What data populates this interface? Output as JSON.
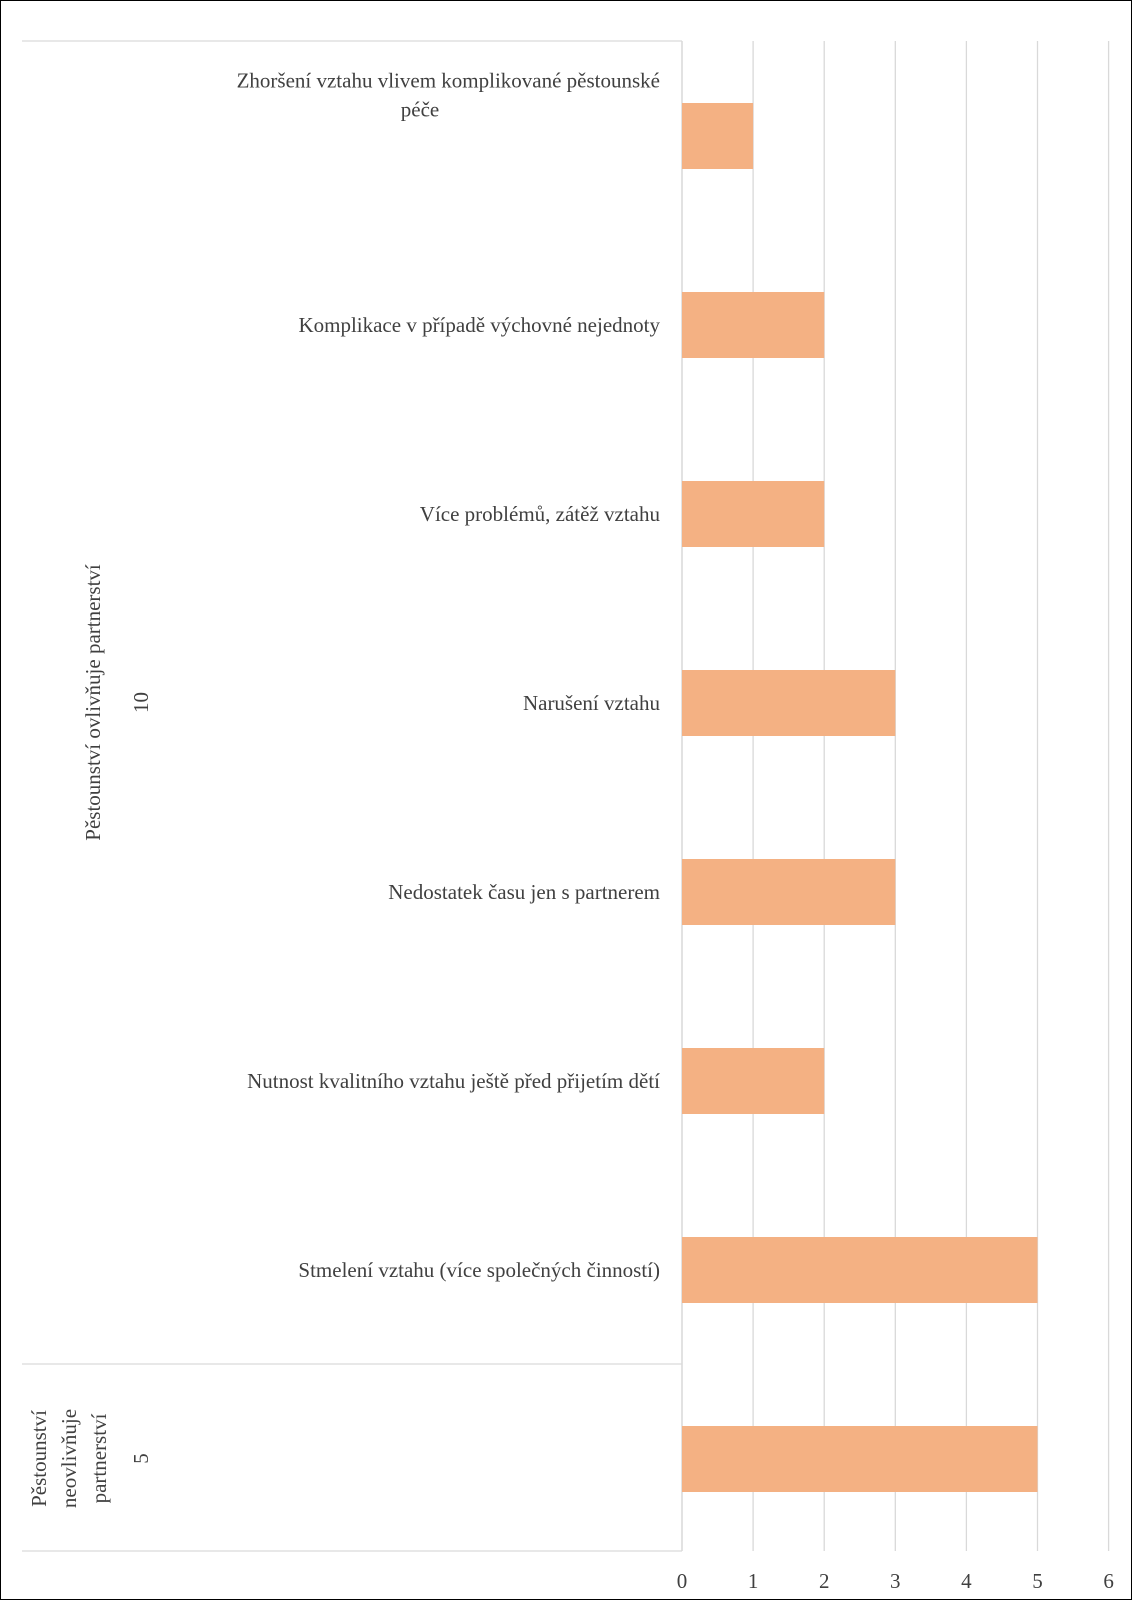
{
  "chart_data": {
    "type": "bar",
    "orientation": "horizontal",
    "bar_color": "#F4B183",
    "groups": [
      {
        "name": "Pěstounství ovlivňuje partnerství",
        "total": "10",
        "categories": [
          "Zhoršení vztahu vlivem komplikované pěstounské péče",
          "Komplikace v případě výchovné nejednoty",
          "Více problémů, zátěž vztahu",
          "Narušení vztahu",
          "Nedostatek času jen s partnerem",
          "Nutnost kvalitního vztahu ještě před přijetím dětí",
          "Stmelení vztahu (více společných činností)"
        ],
        "values": [
          1,
          2,
          2,
          3,
          3,
          2,
          5
        ]
      },
      {
        "name": "Pěstounství neovlivňuje partnerství",
        "total": "5",
        "categories": [
          ""
        ],
        "values": [
          5
        ]
      }
    ],
    "xlim": [
      0,
      6
    ],
    "xticks": [
      "0",
      "1",
      "2",
      "3",
      "4",
      "5",
      "6"
    ],
    "grid": true,
    "legend": "none"
  }
}
